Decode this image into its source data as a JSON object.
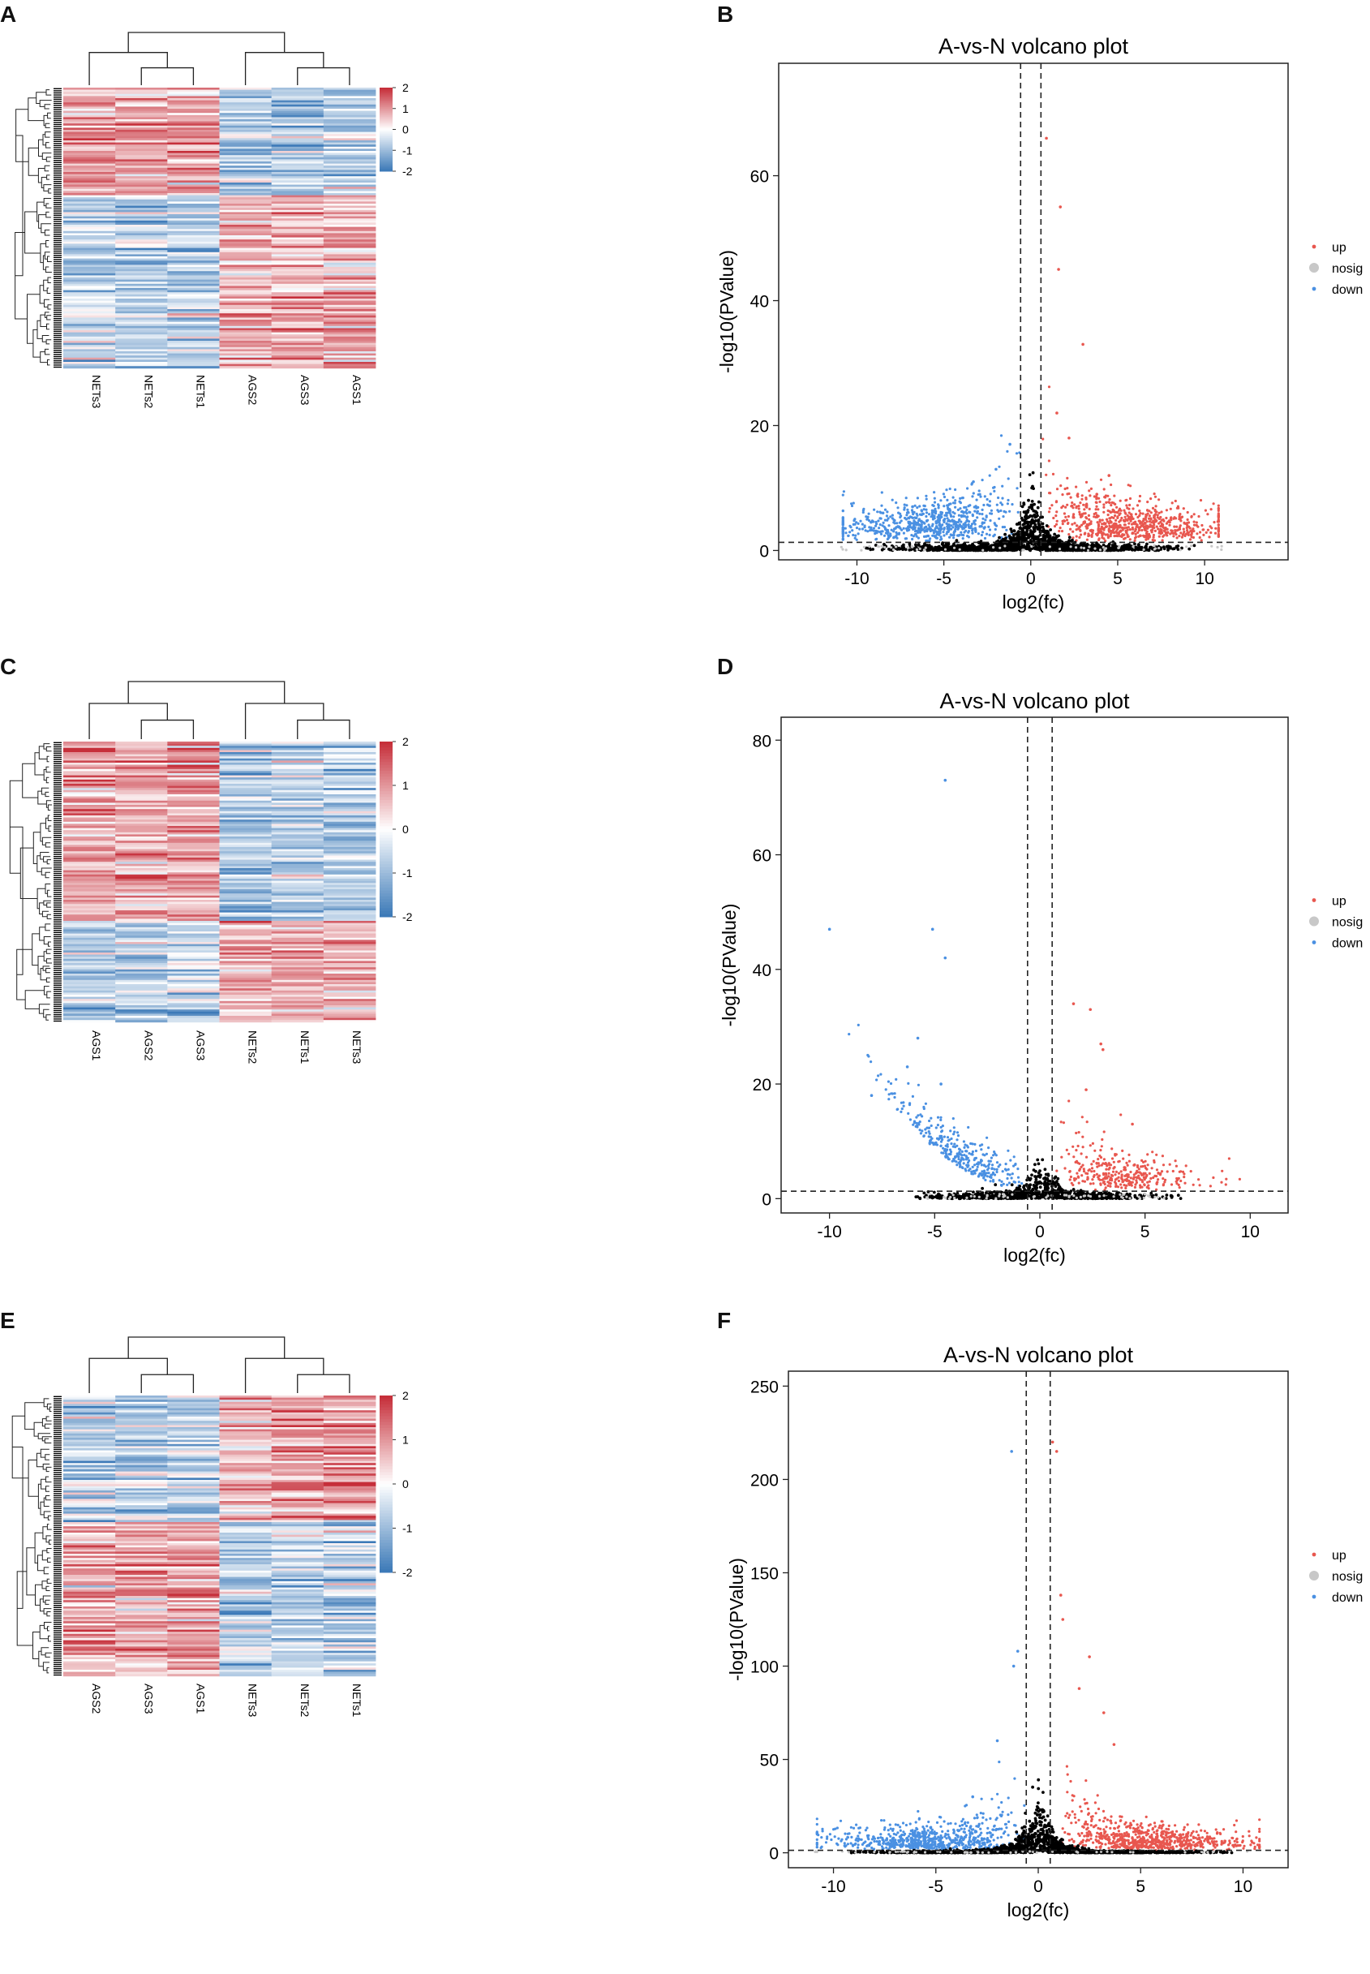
{
  "panel_letters": [
    "A",
    "B",
    "C",
    "D",
    "E",
    "F"
  ],
  "chart_data": [
    {
      "panel": "A",
      "type": "heatmap",
      "title": "",
      "columns": [
        "NETs3",
        "NETs2",
        "NETs1",
        "AGS2",
        "AGS3",
        "AGS1"
      ],
      "colorbar": {
        "min": -2,
        "max": 2,
        "ticks": [
          "2",
          "1",
          "0",
          "-1",
          "-2"
        ],
        "low_color": "#3d7ab8",
        "mid_color": "#ffffff",
        "high_color": "#c62f3a"
      },
      "blocks": [
        {
          "rows_fraction": 0.38,
          "mean_z": [
            0.9,
            0.9,
            0.9,
            -0.9,
            -0.8,
            -0.7
          ]
        },
        {
          "rows_fraction": 0.62,
          "mean_z": [
            -0.6,
            -0.6,
            -0.55,
            0.75,
            0.75,
            0.8
          ]
        }
      ]
    },
    {
      "panel": "B",
      "type": "scatter",
      "title": "A-vs-N volcano plot",
      "xlabel": "log2(fc)",
      "ylabel": "-log10(PValue)",
      "xlim": [
        -14.5,
        14.8
      ],
      "ylim": [
        -1.5,
        78
      ],
      "xticks": [
        -10,
        -5,
        0,
        5,
        10
      ],
      "yticks": [
        0,
        20,
        40,
        60
      ],
      "fc_threshold": [
        -0.585,
        0.585
      ],
      "p_threshold": 1.3,
      "legend": [
        "up",
        "nosig",
        "down"
      ],
      "legend_position": "right",
      "colors": {
        "up": "#e8574f",
        "nosig": "#c8c8c8",
        "down": "#4a90e2",
        "dense": "#000000"
      },
      "outliers_up": [
        [
          0.9,
          66
        ],
        [
          1.7,
          55
        ],
        [
          1.6,
          45
        ],
        [
          3.0,
          33
        ],
        [
          1.5,
          22
        ],
        [
          2.2,
          18
        ],
        [
          4.5,
          12
        ],
        [
          3.8,
          9
        ]
      ],
      "outliers_down": [
        [
          -1.2,
          17
        ],
        [
          -2.0,
          13
        ],
        [
          -3.3,
          11
        ],
        [
          -6.8,
          7
        ],
        [
          -8.5,
          6
        ]
      ]
    },
    {
      "panel": "C",
      "type": "heatmap",
      "title": "",
      "columns": [
        "AGS1",
        "AGS2",
        "AGS3",
        "NETs2",
        "NETs1",
        "NETs3"
      ],
      "colorbar": {
        "min": -2,
        "max": 2,
        "ticks": [
          "2",
          "1",
          "0",
          "-1",
          "-2"
        ],
        "low_color": "#3d7ab8",
        "mid_color": "#ffffff",
        "high_color": "#c62f3a"
      },
      "blocks": [
        {
          "rows_fraction": 0.64,
          "mean_z": [
            0.95,
            0.75,
            0.9,
            -0.8,
            -0.7,
            -0.75
          ]
        },
        {
          "rows_fraction": 0.36,
          "mean_z": [
            -0.6,
            -0.65,
            -0.55,
            0.7,
            0.85,
            0.8
          ]
        }
      ]
    },
    {
      "panel": "D",
      "type": "scatter",
      "title": "A-vs-N volcano plot",
      "xlabel": "log2(fc)",
      "ylabel": "-log10(PValue)",
      "xlim": [
        -12.3,
        11.8
      ],
      "ylim": [
        -2.5,
        84
      ],
      "xticks": [
        -10,
        -5,
        0,
        5,
        10
      ],
      "yticks": [
        0,
        20,
        40,
        60,
        80
      ],
      "fc_threshold": [
        -0.585,
        0.585
      ],
      "p_threshold": 1.3,
      "legend": [
        "up",
        "nosig",
        "down"
      ],
      "legend_position": "right",
      "colors": {
        "up": "#e8574f",
        "nosig": "#c8c8c8",
        "down": "#4a90e2",
        "dense": "#000000"
      },
      "outliers_up": [
        [
          1.6,
          34
        ],
        [
          2.4,
          33
        ],
        [
          2.9,
          27
        ],
        [
          3.0,
          26
        ],
        [
          2.2,
          19
        ],
        [
          4.4,
          13
        ]
      ],
      "outliers_down": [
        [
          -4.5,
          73
        ],
        [
          -10.0,
          47
        ],
        [
          -5.1,
          47
        ],
        [
          -4.5,
          42
        ],
        [
          -8.0,
          18
        ],
        [
          -6.3,
          23
        ],
        [
          -4.7,
          20
        ],
        [
          -5.8,
          28
        ]
      ]
    },
    {
      "panel": "E",
      "type": "heatmap",
      "title": "",
      "columns": [
        "AGS2",
        "AGS3",
        "AGS1",
        "NETs3",
        "NETs2",
        "NETs1"
      ],
      "colorbar": {
        "min": -2,
        "max": 2,
        "ticks": [
          "2",
          "1",
          "0",
          "-1",
          "-2"
        ],
        "low_color": "#3d7ab8",
        "mid_color": "#ffffff",
        "high_color": "#c62f3a"
      },
      "blocks": [
        {
          "rows_fraction": 0.45,
          "mean_z": [
            -0.8,
            -0.7,
            -0.75,
            0.6,
            0.8,
            0.85
          ]
        },
        {
          "rows_fraction": 0.55,
          "mean_z": [
            0.85,
            0.75,
            0.85,
            -0.7,
            -0.6,
            -0.65
          ]
        }
      ]
    },
    {
      "panel": "F",
      "type": "scatter",
      "title": "A-vs-N volcano plot",
      "xlabel": "log2(fc)",
      "ylabel": "-log10(PValue)",
      "xlim": [
        -12.2,
        12.2
      ],
      "ylim": [
        -8,
        258
      ],
      "xticks": [
        -10,
        -5,
        0,
        5,
        10
      ],
      "yticks": [
        0,
        50,
        100,
        150,
        200,
        250
      ],
      "fc_threshold": [
        -0.585,
        0.585
      ],
      "p_threshold": 1.3,
      "legend": [
        "up",
        "nosig",
        "down"
      ],
      "legend_position": "right",
      "colors": {
        "up": "#e8574f",
        "nosig": "#c8c8c8",
        "down": "#4a90e2",
        "dense": "#000000"
      },
      "outliers_up": [
        [
          0.7,
          220
        ],
        [
          0.9,
          215
        ],
        [
          1.1,
          138
        ],
        [
          1.2,
          125
        ],
        [
          2.0,
          88
        ],
        [
          3.2,
          75
        ],
        [
          3.7,
          58
        ],
        [
          2.5,
          105
        ]
      ],
      "outliers_down": [
        [
          -1.3,
          215
        ],
        [
          -1.0,
          108
        ],
        [
          -1.2,
          100
        ],
        [
          -2.0,
          60
        ],
        [
          -3.2,
          30
        ]
      ]
    }
  ]
}
